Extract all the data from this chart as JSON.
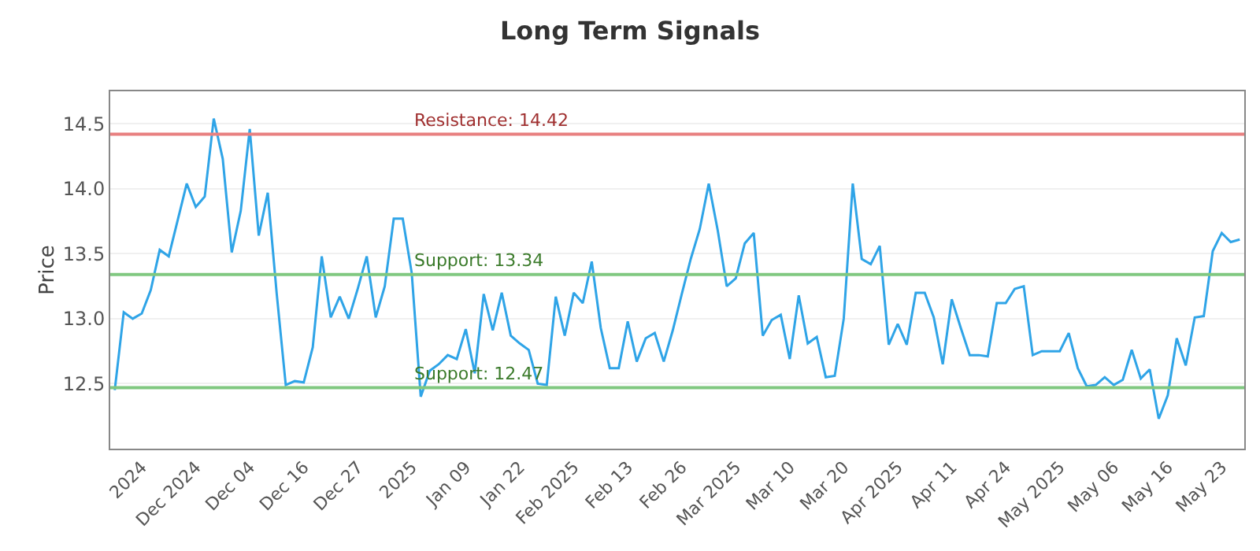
{
  "chart_data": {
    "type": "line",
    "title": "Long Term Signals",
    "ylabel": "Price",
    "categories": [
      null,
      null,
      null,
      "2024",
      null,
      null,
      null,
      null,
      null,
      "Dec 2024",
      null,
      null,
      null,
      null,
      null,
      "Dec 04",
      null,
      null,
      null,
      null,
      null,
      "Dec 16",
      null,
      null,
      null,
      null,
      null,
      "Dec 27",
      null,
      null,
      null,
      null,
      null,
      "2025",
      null,
      null,
      null,
      null,
      null,
      "Jan 09",
      null,
      null,
      null,
      null,
      null,
      "Jan 22",
      null,
      null,
      null,
      null,
      null,
      "Feb 2025",
      null,
      null,
      null,
      null,
      null,
      "Feb 13",
      null,
      null,
      null,
      null,
      null,
      "Feb 26",
      null,
      null,
      null,
      null,
      null,
      "Mar 2025",
      null,
      null,
      null,
      null,
      null,
      "Mar 10",
      null,
      null,
      null,
      null,
      null,
      "Mar 20",
      null,
      null,
      null,
      null,
      null,
      "Apr 2025",
      null,
      null,
      null,
      null,
      null,
      "Apr 11",
      null,
      null,
      null,
      null,
      null,
      "Apr 24",
      null,
      null,
      null,
      null,
      null,
      "May 2025",
      null,
      null,
      null,
      null,
      null,
      "May 06",
      null,
      null,
      null,
      null,
      null,
      "May 16",
      null,
      null,
      null,
      null,
      null,
      "May 23",
      null,
      null
    ],
    "series": [
      {
        "color": "#2fa4e7",
        "values": [
          12.45,
          13.05,
          13.0,
          13.04,
          13.22,
          13.53,
          13.48,
          13.76,
          14.04,
          13.86,
          13.94,
          14.54,
          14.23,
          13.51,
          13.83,
          14.46,
          13.64,
          13.97,
          13.19,
          12.49,
          12.52,
          12.51,
          12.78,
          13.48,
          13.01,
          13.17,
          13.0,
          13.23,
          13.48,
          13.01,
          13.25,
          13.77,
          13.77,
          13.35,
          12.4,
          12.6,
          12.65,
          12.72,
          12.69,
          12.92,
          12.58,
          13.19,
          12.91,
          13.2,
          12.87,
          12.81,
          12.76,
          12.5,
          12.49,
          13.17,
          12.87,
          13.2,
          13.12,
          13.44,
          12.93,
          12.62,
          12.62,
          12.98,
          12.67,
          12.85,
          12.89,
          12.67,
          12.91,
          13.19,
          13.46,
          13.69,
          14.04,
          13.68,
          13.25,
          13.31,
          13.58,
          13.66,
          12.87,
          12.99,
          13.03,
          12.69,
          13.18,
          12.81,
          12.86,
          12.55,
          12.56,
          13.0,
          14.04,
          13.46,
          13.42,
          13.56,
          12.8,
          12.96,
          12.8,
          13.2,
          13.2,
          13.01,
          12.65,
          13.15,
          12.93,
          12.72,
          12.72,
          12.71,
          13.12,
          13.12,
          13.23,
          13.25,
          12.72,
          12.75,
          12.75,
          12.75,
          12.89,
          12.62,
          12.48,
          12.49,
          12.55,
          12.49,
          12.53,
          12.76,
          12.54,
          12.61,
          12.23,
          12.41,
          12.85,
          12.64,
          13.01,
          13.02,
          13.52,
          13.66,
          13.59,
          13.61
        ]
      }
    ],
    "ylim": [
      12.0,
      14.75
    ],
    "yticks": [
      {
        "value": 12.5,
        "label": "12.5"
      },
      {
        "value": 13,
        "label": "13.0"
      },
      {
        "value": 13.5,
        "label": "13.5"
      },
      {
        "value": 14,
        "label": "14.0"
      },
      {
        "value": 14.5,
        "label": "14.5"
      }
    ],
    "grid": "y",
    "marker": "none",
    "line_style": "solid",
    "ref_lines": [
      {
        "axis": "y",
        "value": 14.42,
        "label": "Resistance: 14.42",
        "color": "#e88080"
      },
      {
        "axis": "y",
        "value": 13.34,
        "label": "Support: 13.34",
        "color": "#80c880"
      },
      {
        "axis": "y",
        "value": 12.47,
        "label": "Support: 12.47",
        "color": "#80c880"
      }
    ]
  }
}
